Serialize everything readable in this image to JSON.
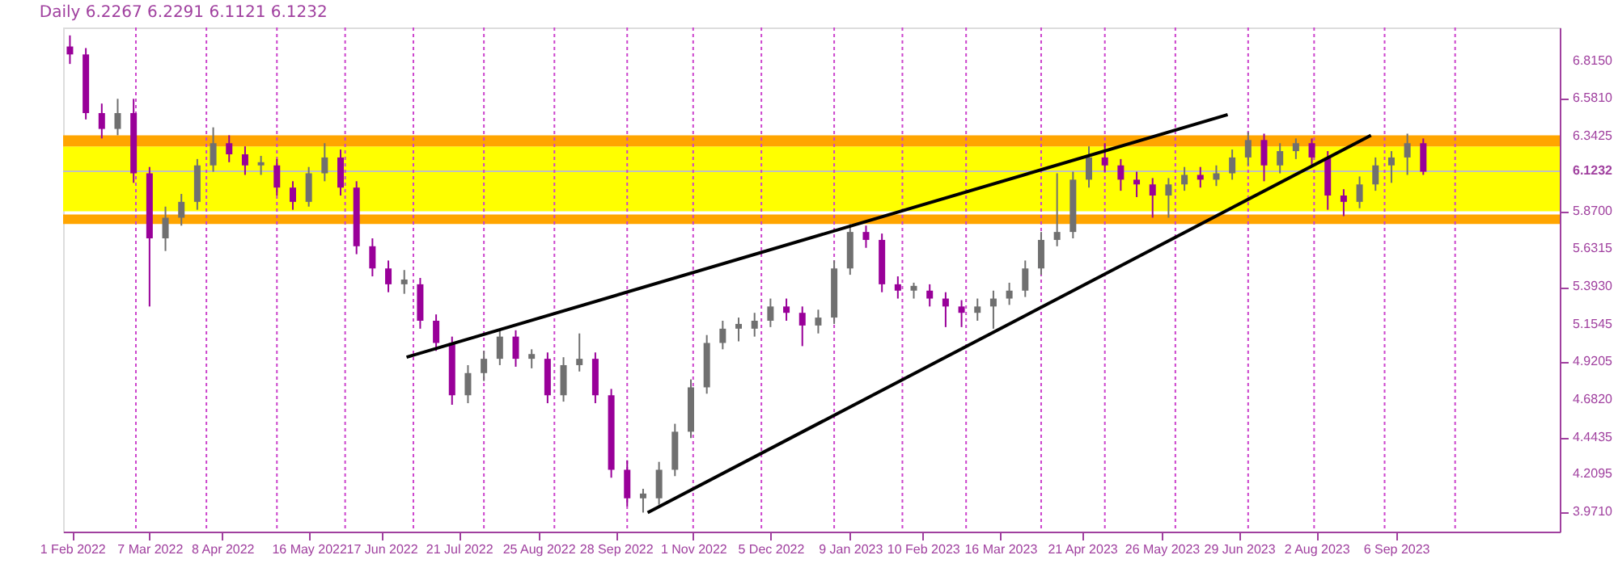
{
  "chart_data": {
    "type": "candlestick",
    "title": "Daily 6.2267 6.2291 6.1121 6.1232",
    "x": [
      "2022-01-31",
      "2022-02-07",
      "2022-02-14",
      "2022-02-21",
      "2022-02-28",
      "2022-03-07",
      "2022-03-14",
      "2022-03-21",
      "2022-03-28",
      "2022-04-04",
      "2022-04-11",
      "2022-04-18",
      "2022-04-25",
      "2022-05-02",
      "2022-05-09",
      "2022-05-16",
      "2022-05-23",
      "2022-05-30",
      "2022-06-06",
      "2022-06-13",
      "2022-06-20",
      "2022-06-27",
      "2022-07-04",
      "2022-07-11",
      "2022-07-18",
      "2022-07-25",
      "2022-08-01",
      "2022-08-08",
      "2022-08-15",
      "2022-08-22",
      "2022-08-29",
      "2022-09-05",
      "2022-09-12",
      "2022-09-19",
      "2022-09-26",
      "2022-10-03",
      "2022-10-10",
      "2022-10-17",
      "2022-10-24",
      "2022-10-31",
      "2022-11-07",
      "2022-11-14",
      "2022-11-21",
      "2022-11-28",
      "2022-12-05",
      "2022-12-12",
      "2022-12-19",
      "2022-12-26",
      "2023-01-02",
      "2023-01-09",
      "2023-01-16",
      "2023-01-23",
      "2023-01-30",
      "2023-02-06",
      "2023-02-13",
      "2023-02-20",
      "2023-02-27",
      "2023-03-06",
      "2023-03-13",
      "2023-03-20",
      "2023-03-27",
      "2023-04-03",
      "2023-04-10",
      "2023-04-17",
      "2023-04-24",
      "2023-05-01",
      "2023-05-08",
      "2023-05-15",
      "2023-05-22",
      "2023-05-29",
      "2023-06-05",
      "2023-06-12",
      "2023-06-19",
      "2023-06-26",
      "2023-07-03",
      "2023-07-10",
      "2023-07-17",
      "2023-07-24",
      "2023-07-31",
      "2023-08-07",
      "2023-08-14",
      "2023-08-21",
      "2023-08-28",
      "2023-09-04",
      "2023-09-11",
      "2023-09-18"
    ],
    "ohlc": [
      [
        6.91,
        6.98,
        6.8,
        6.86
      ],
      [
        6.86,
        6.9,
        6.45,
        6.49
      ],
      [
        6.49,
        6.55,
        6.33,
        6.39
      ],
      [
        6.39,
        6.58,
        6.35,
        6.49
      ],
      [
        6.49,
        6.58,
        6.05,
        6.11
      ],
      [
        6.11,
        6.15,
        5.27,
        5.7
      ],
      [
        5.7,
        5.9,
        5.62,
        5.83
      ],
      [
        5.83,
        5.98,
        5.78,
        5.93
      ],
      [
        5.93,
        6.2,
        5.88,
        6.16
      ],
      [
        6.16,
        6.4,
        6.12,
        6.3
      ],
      [
        6.3,
        6.35,
        6.18,
        6.23
      ],
      [
        6.23,
        6.28,
        6.1,
        6.16
      ],
      [
        6.16,
        6.22,
        6.1,
        6.18
      ],
      [
        6.16,
        6.2,
        5.97,
        6.02
      ],
      [
        6.02,
        6.06,
        5.88,
        5.93
      ],
      [
        5.93,
        6.15,
        5.9,
        6.11
      ],
      [
        6.11,
        6.3,
        6.06,
        6.21
      ],
      [
        6.21,
        6.26,
        5.97,
        6.02
      ],
      [
        6.02,
        6.06,
        5.6,
        5.65
      ],
      [
        5.65,
        5.7,
        5.46,
        5.51
      ],
      [
        5.51,
        5.56,
        5.36,
        5.41
      ],
      [
        5.41,
        5.5,
        5.35,
        5.44
      ],
      [
        5.41,
        5.45,
        5.13,
        5.18
      ],
      [
        5.18,
        5.22,
        4.99,
        5.04
      ],
      [
        5.04,
        5.08,
        4.65,
        4.71
      ],
      [
        4.71,
        4.9,
        4.66,
        4.85
      ],
      [
        4.85,
        4.99,
        4.8,
        4.94
      ],
      [
        4.94,
        5.13,
        4.9,
        5.08
      ],
      [
        5.08,
        5.12,
        4.89,
        4.94
      ],
      [
        4.94,
        5.0,
        4.88,
        4.97
      ],
      [
        4.94,
        4.98,
        4.66,
        4.71
      ],
      [
        4.71,
        4.95,
        4.67,
        4.9
      ],
      [
        4.9,
        5.1,
        4.86,
        4.94
      ],
      [
        4.94,
        4.98,
        4.66,
        4.71
      ],
      [
        4.71,
        4.75,
        4.19,
        4.24
      ],
      [
        4.24,
        4.3,
        4.01,
        4.06
      ],
      [
        4.06,
        4.12,
        3.97,
        4.09
      ],
      [
        4.06,
        4.29,
        4.02,
        4.24
      ],
      [
        4.24,
        4.53,
        4.2,
        4.48
      ],
      [
        4.48,
        4.81,
        4.44,
        4.76
      ],
      [
        4.76,
        5.09,
        4.72,
        5.04
      ],
      [
        5.04,
        5.18,
        5.0,
        5.13
      ],
      [
        5.13,
        5.2,
        5.05,
        5.16
      ],
      [
        5.13,
        5.23,
        5.08,
        5.18
      ],
      [
        5.18,
        5.32,
        5.14,
        5.27
      ],
      [
        5.27,
        5.32,
        5.18,
        5.23
      ],
      [
        5.23,
        5.27,
        5.02,
        5.15
      ],
      [
        5.15,
        5.25,
        5.1,
        5.2
      ],
      [
        5.2,
        5.56,
        5.16,
        5.51
      ],
      [
        5.51,
        5.79,
        5.47,
        5.74
      ],
      [
        5.74,
        5.78,
        5.64,
        5.69
      ],
      [
        5.69,
        5.73,
        5.36,
        5.41
      ],
      [
        5.41,
        5.46,
        5.32,
        5.37
      ],
      [
        5.37,
        5.42,
        5.32,
        5.4
      ],
      [
        5.37,
        5.41,
        5.27,
        5.32
      ],
      [
        5.32,
        5.36,
        5.14,
        5.27
      ],
      [
        5.27,
        5.31,
        5.14,
        5.23
      ],
      [
        5.23,
        5.32,
        5.18,
        5.27
      ],
      [
        5.27,
        5.37,
        5.13,
        5.32
      ],
      [
        5.32,
        5.42,
        5.28,
        5.37
      ],
      [
        5.37,
        5.56,
        5.33,
        5.51
      ],
      [
        5.51,
        5.74,
        5.47,
        5.69
      ],
      [
        5.69,
        6.11,
        5.65,
        5.74
      ],
      [
        5.74,
        6.12,
        5.7,
        6.07
      ],
      [
        6.07,
        6.28,
        6.02,
        6.21
      ],
      [
        6.21,
        6.3,
        6.12,
        6.16
      ],
      [
        6.16,
        6.2,
        6.0,
        6.07
      ],
      [
        6.07,
        6.12,
        5.96,
        6.04
      ],
      [
        6.04,
        6.08,
        5.83,
        5.97
      ],
      [
        5.97,
        6.08,
        5.83,
        6.04
      ],
      [
        6.04,
        6.15,
        6.0,
        6.1
      ],
      [
        6.1,
        6.15,
        6.02,
        6.07
      ],
      [
        6.07,
        6.16,
        6.03,
        6.11
      ],
      [
        6.11,
        6.26,
        6.07,
        6.21
      ],
      [
        6.21,
        6.37,
        6.16,
        6.32
      ],
      [
        6.32,
        6.36,
        6.06,
        6.16
      ],
      [
        6.16,
        6.3,
        6.11,
        6.25
      ],
      [
        6.25,
        6.33,
        6.2,
        6.3
      ],
      [
        6.3,
        6.33,
        6.15,
        6.21
      ],
      [
        6.21,
        6.25,
        5.88,
        5.97
      ],
      [
        5.97,
        6.01,
        5.84,
        5.93
      ],
      [
        5.93,
        6.09,
        5.89,
        6.04
      ],
      [
        6.04,
        6.21,
        6.0,
        6.16
      ],
      [
        6.16,
        6.25,
        6.05,
        6.21
      ],
      [
        6.21,
        6.36,
        6.1,
        6.3
      ],
      [
        6.3,
        6.33,
        6.1,
        6.12
      ]
    ],
    "series": [
      {
        "type": "line",
        "color": "#000000",
        "x": [
          "2022-06-28",
          "2023-06-24"
        ],
        "values": [
          4.95,
          6.48
        ]
      },
      {
        "type": "line",
        "color": "#000000",
        "x": [
          "2022-10-12",
          "2023-08-26"
        ],
        "values": [
          3.97,
          6.35
        ]
      }
    ],
    "xlim": [
      "2022-01-28",
      "2023-11-17"
    ],
    "ylim": [
      3.85,
      7.03
    ],
    "xticks": [
      {
        "value": "2022-02-01",
        "label": "1 Feb 2022"
      },
      {
        "value": "2022-03-07",
        "label": "7 Mar 2022"
      },
      {
        "value": "2022-04-08",
        "label": "8 Apr 2022"
      },
      {
        "value": "2022-05-16",
        "label": "16 May 2022"
      },
      {
        "value": "2022-06-17",
        "label": "17 Jun 2022"
      },
      {
        "value": "2022-07-21",
        "label": "21 Jul 2022"
      },
      {
        "value": "2022-08-25",
        "label": "25 Aug 2022"
      },
      {
        "value": "2022-09-28",
        "label": "28 Sep 2022"
      },
      {
        "value": "2022-11-01",
        "label": "1 Nov 2022"
      },
      {
        "value": "2022-12-05",
        "label": "5 Dec 2022"
      },
      {
        "value": "2023-01-09",
        "label": "9 Jan 2023"
      },
      {
        "value": "2023-02-10",
        "label": "10 Feb 2023"
      },
      {
        "value": "2023-03-16",
        "label": "16 Mar 2023"
      },
      {
        "value": "2023-04-21",
        "label": "21 Apr 2023"
      },
      {
        "value": "2023-05-26",
        "label": "26 May 2023"
      },
      {
        "value": "2023-06-29",
        "label": "29 Jun 2023"
      },
      {
        "value": "2023-08-02",
        "label": "2 Aug 2023"
      },
      {
        "value": "2023-09-06",
        "label": "6 Sep 2023"
      }
    ],
    "yticks": [
      {
        "value": 6.815,
        "label": "6.8150"
      },
      {
        "value": 6.581,
        "label": "6.5810"
      },
      {
        "value": 6.3425,
        "label": "6.3425"
      },
      {
        "value": 5.87,
        "label": "5.8700"
      },
      {
        "value": 5.6315,
        "label": "5.6315"
      },
      {
        "value": 5.393,
        "label": "5.3930"
      },
      {
        "value": 5.1545,
        "label": "5.1545"
      },
      {
        "value": 4.9205,
        "label": "4.9205"
      },
      {
        "value": 4.682,
        "label": "4.6820"
      },
      {
        "value": 4.4435,
        "label": "4.4435"
      },
      {
        "value": 4.2095,
        "label": "4.2095"
      },
      {
        "value": 3.971,
        "label": "3.9710"
      }
    ],
    "bands": [
      {
        "axis": "y",
        "from": 5.87,
        "to": 6.28,
        "color": "#ffff00"
      },
      {
        "axis": "y",
        "from": 6.28,
        "to": 6.35,
        "color": "#ffa500"
      },
      {
        "axis": "y",
        "from": 5.79,
        "to": 5.85,
        "color": "#ffa500"
      }
    ],
    "ref_lines": [
      {
        "axis": "y",
        "value": 6.1232,
        "label": "6.1232",
        "color": "#c0c0c0"
      },
      {
        "axis": "x",
        "value": "2022-03-01",
        "color": "#cc44cc",
        "line_style": "dotted"
      },
      {
        "axis": "x",
        "value": "2022-04-01",
        "color": "#cc44cc",
        "line_style": "dotted"
      },
      {
        "axis": "x",
        "value": "2022-05-02",
        "color": "#cc44cc",
        "line_style": "dotted"
      },
      {
        "axis": "x",
        "value": "2022-06-01",
        "color": "#cc44cc",
        "line_style": "dotted"
      },
      {
        "axis": "x",
        "value": "2022-07-01",
        "color": "#cc44cc",
        "line_style": "dotted"
      },
      {
        "axis": "x",
        "value": "2022-08-01",
        "color": "#cc44cc",
        "line_style": "dotted"
      },
      {
        "axis": "x",
        "value": "2022-09-01",
        "color": "#cc44cc",
        "line_style": "dotted"
      },
      {
        "axis": "x",
        "value": "2022-10-03",
        "color": "#cc44cc",
        "line_style": "dotted"
      },
      {
        "axis": "x",
        "value": "2022-11-01",
        "color": "#cc44cc",
        "line_style": "dotted"
      },
      {
        "axis": "x",
        "value": "2022-12-01",
        "color": "#cc44cc",
        "line_style": "dotted"
      },
      {
        "axis": "x",
        "value": "2023-01-02",
        "color": "#cc44cc",
        "line_style": "dotted"
      },
      {
        "axis": "x",
        "value": "2023-02-01",
        "color": "#cc44cc",
        "line_style": "dotted"
      },
      {
        "axis": "x",
        "value": "2023-03-01",
        "color": "#cc44cc",
        "line_style": "dotted"
      },
      {
        "axis": "x",
        "value": "2023-04-03",
        "color": "#cc44cc",
        "line_style": "dotted"
      },
      {
        "axis": "x",
        "value": "2023-05-01",
        "color": "#cc44cc",
        "line_style": "dotted"
      },
      {
        "axis": "x",
        "value": "2023-06-01",
        "color": "#cc44cc",
        "line_style": "dotted"
      },
      {
        "axis": "x",
        "value": "2023-07-03",
        "color": "#cc44cc",
        "line_style": "dotted"
      },
      {
        "axis": "x",
        "value": "2023-08-01",
        "color": "#cc44cc",
        "line_style": "dotted"
      },
      {
        "axis": "x",
        "value": "2023-09-01",
        "color": "#cc44cc",
        "line_style": "dotted"
      },
      {
        "axis": "x",
        "value": "2023-10-02",
        "color": "#cc44cc",
        "line_style": "dotted"
      }
    ],
    "tick_labels": true
  }
}
